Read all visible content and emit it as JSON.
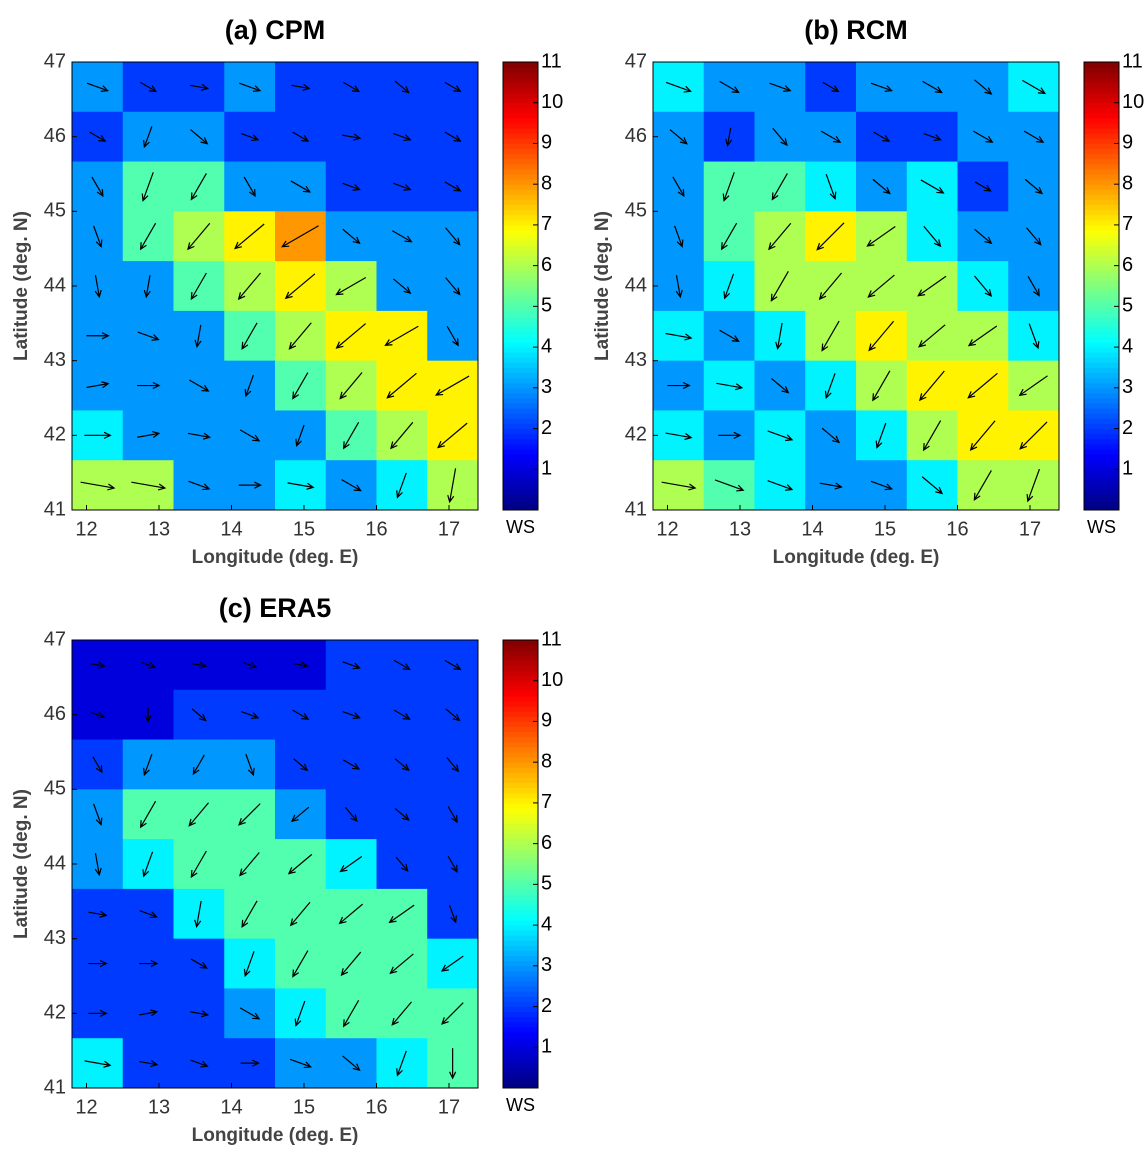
{
  "chart_data": [
    {
      "type": "heatmap",
      "title": "(a) CPM",
      "xlabel": "Longitude (deg. E)",
      "ylabel": "Latitude (deg. N)",
      "xlim": [
        11.8,
        17.4
      ],
      "ylim": [
        41,
        47
      ],
      "xticks": [
        12,
        13,
        14,
        15,
        16,
        17
      ],
      "yticks": [
        41,
        42,
        43,
        44,
        45,
        46,
        47
      ],
      "colormap": "jet",
      "values": [
        [
          3,
          2,
          2,
          3,
          2,
          2,
          2,
          2
        ],
        [
          2,
          3,
          3,
          2,
          2,
          2,
          2,
          2
        ],
        [
          3,
          5,
          5,
          3,
          3,
          2,
          2,
          2
        ],
        [
          3,
          5,
          6,
          7,
          8,
          3,
          3,
          3
        ],
        [
          3,
          3,
          5,
          6,
          7,
          6,
          3,
          3
        ],
        [
          3,
          3,
          3,
          5,
          6,
          7,
          7,
          3
        ],
        [
          3,
          3,
          3,
          3,
          5,
          6,
          7,
          7
        ],
        [
          4,
          3,
          3,
          3,
          3,
          5,
          6,
          7
        ],
        [
          6,
          6,
          3,
          3,
          4,
          3,
          4,
          6
        ]
      ],
      "directions": [
        [
          110,
          120,
          100,
          110,
          100,
          120,
          130,
          120
        ],
        [
          120,
          200,
          130,
          110,
          120,
          100,
          110,
          120
        ],
        [
          150,
          200,
          210,
          150,
          120,
          110,
          110,
          120
        ],
        [
          160,
          210,
          220,
          230,
          240,
          130,
          120,
          140
        ],
        [
          170,
          190,
          210,
          220,
          230,
          240,
          130,
          140
        ],
        [
          90,
          110,
          190,
          210,
          220,
          230,
          240,
          150
        ],
        [
          80,
          90,
          120,
          200,
          210,
          220,
          230,
          240
        ],
        [
          90,
          80,
          100,
          120,
          200,
          210,
          220,
          230
        ],
        [
          100,
          100,
          110,
          90,
          100,
          120,
          200,
          190
        ]
      ],
      "colorbar": {
        "label": "WS",
        "clim": [
          0,
          11
        ],
        "ticks": [
          1,
          2,
          3,
          4,
          5,
          6,
          7,
          8,
          9,
          10,
          11
        ]
      }
    },
    {
      "type": "heatmap",
      "title": "(b) RCM",
      "xlabel": "Longitude (deg. E)",
      "ylabel": "Latitude (deg. N)",
      "xlim": [
        11.8,
        17.4
      ],
      "ylim": [
        41,
        47
      ],
      "xticks": [
        12,
        13,
        14,
        15,
        16,
        17
      ],
      "yticks": [
        41,
        42,
        43,
        44,
        45,
        46,
        47
      ],
      "colormap": "jet",
      "values": [
        [
          4,
          3,
          3,
          2,
          3,
          3,
          3,
          4
        ],
        [
          3,
          2,
          3,
          3,
          2,
          2,
          3,
          3
        ],
        [
          3,
          5,
          5,
          4,
          3,
          4,
          2,
          3
        ],
        [
          3,
          5,
          6,
          7,
          6,
          4,
          3,
          3
        ],
        [
          3,
          4,
          6,
          6,
          6,
          6,
          4,
          3
        ],
        [
          4,
          3,
          4,
          6,
          7,
          6,
          6,
          4
        ],
        [
          3,
          4,
          3,
          4,
          6,
          7,
          7,
          6
        ],
        [
          4,
          3,
          4,
          3,
          4,
          6,
          7,
          7
        ],
        [
          6,
          5,
          4,
          3,
          3,
          4,
          6,
          6
        ]
      ],
      "directions": [
        [
          110,
          120,
          110,
          120,
          110,
          120,
          130,
          120
        ],
        [
          130,
          190,
          140,
          120,
          120,
          110,
          120,
          120
        ],
        [
          150,
          200,
          210,
          160,
          130,
          120,
          120,
          130
        ],
        [
          160,
          210,
          220,
          225,
          235,
          140,
          130,
          140
        ],
        [
          170,
          200,
          210,
          220,
          230,
          235,
          140,
          150
        ],
        [
          100,
          120,
          190,
          210,
          220,
          230,
          235,
          160
        ],
        [
          90,
          100,
          130,
          200,
          210,
          220,
          230,
          235
        ],
        [
          100,
          90,
          110,
          130,
          200,
          210,
          220,
          225
        ],
        [
          100,
          110,
          110,
          100,
          110,
          130,
          210,
          200
        ]
      ],
      "colorbar": {
        "label": "WS",
        "clim": [
          0,
          11
        ],
        "ticks": [
          1,
          2,
          3,
          4,
          5,
          6,
          7,
          8,
          9,
          10,
          11
        ]
      }
    },
    {
      "type": "heatmap",
      "title": "(c) ERA5",
      "xlabel": "Longitude (deg. E)",
      "ylabel": "Latitude (deg. N)",
      "xlim": [
        11.8,
        17.4
      ],
      "ylim": [
        41,
        47
      ],
      "xticks": [
        12,
        13,
        14,
        15,
        16,
        17
      ],
      "yticks": [
        41,
        42,
        43,
        44,
        45,
        46,
        47
      ],
      "colormap": "jet",
      "values": [
        [
          1,
          1,
          1,
          1,
          1,
          2,
          2,
          2
        ],
        [
          1,
          1,
          2,
          2,
          2,
          2,
          2,
          2
        ],
        [
          2,
          3,
          3,
          3,
          2,
          2,
          2,
          2
        ],
        [
          3,
          5,
          5,
          5,
          3,
          2,
          2,
          2
        ],
        [
          3,
          4,
          5,
          5,
          5,
          4,
          2,
          2
        ],
        [
          2,
          2,
          4,
          5,
          5,
          5,
          5,
          2
        ],
        [
          2,
          2,
          2,
          4,
          5,
          5,
          5,
          4
        ],
        [
          2,
          2,
          2,
          3,
          4,
          5,
          5,
          5
        ],
        [
          4,
          2,
          2,
          2,
          3,
          3,
          4,
          5
        ]
      ],
      "directions": [
        [
          100,
          110,
          100,
          110,
          100,
          110,
          120,
          120
        ],
        [
          110,
          180,
          130,
          110,
          120,
          110,
          120,
          130
        ],
        [
          150,
          200,
          210,
          160,
          130,
          120,
          130,
          140
        ],
        [
          160,
          210,
          220,
          225,
          230,
          140,
          130,
          150
        ],
        [
          170,
          200,
          210,
          220,
          230,
          235,
          140,
          150
        ],
        [
          100,
          110,
          190,
          210,
          220,
          230,
          235,
          160
        ],
        [
          90,
          90,
          120,
          200,
          210,
          220,
          230,
          235
        ],
        [
          90,
          80,
          100,
          120,
          200,
          210,
          220,
          225
        ],
        [
          100,
          100,
          110,
          90,
          110,
          130,
          200,
          180
        ]
      ],
      "colorbar": {
        "label": "WS",
        "clim": [
          0,
          11
        ],
        "ticks": [
          1,
          2,
          3,
          4,
          5,
          6,
          7,
          8,
          9,
          10,
          11
        ]
      }
    }
  ]
}
